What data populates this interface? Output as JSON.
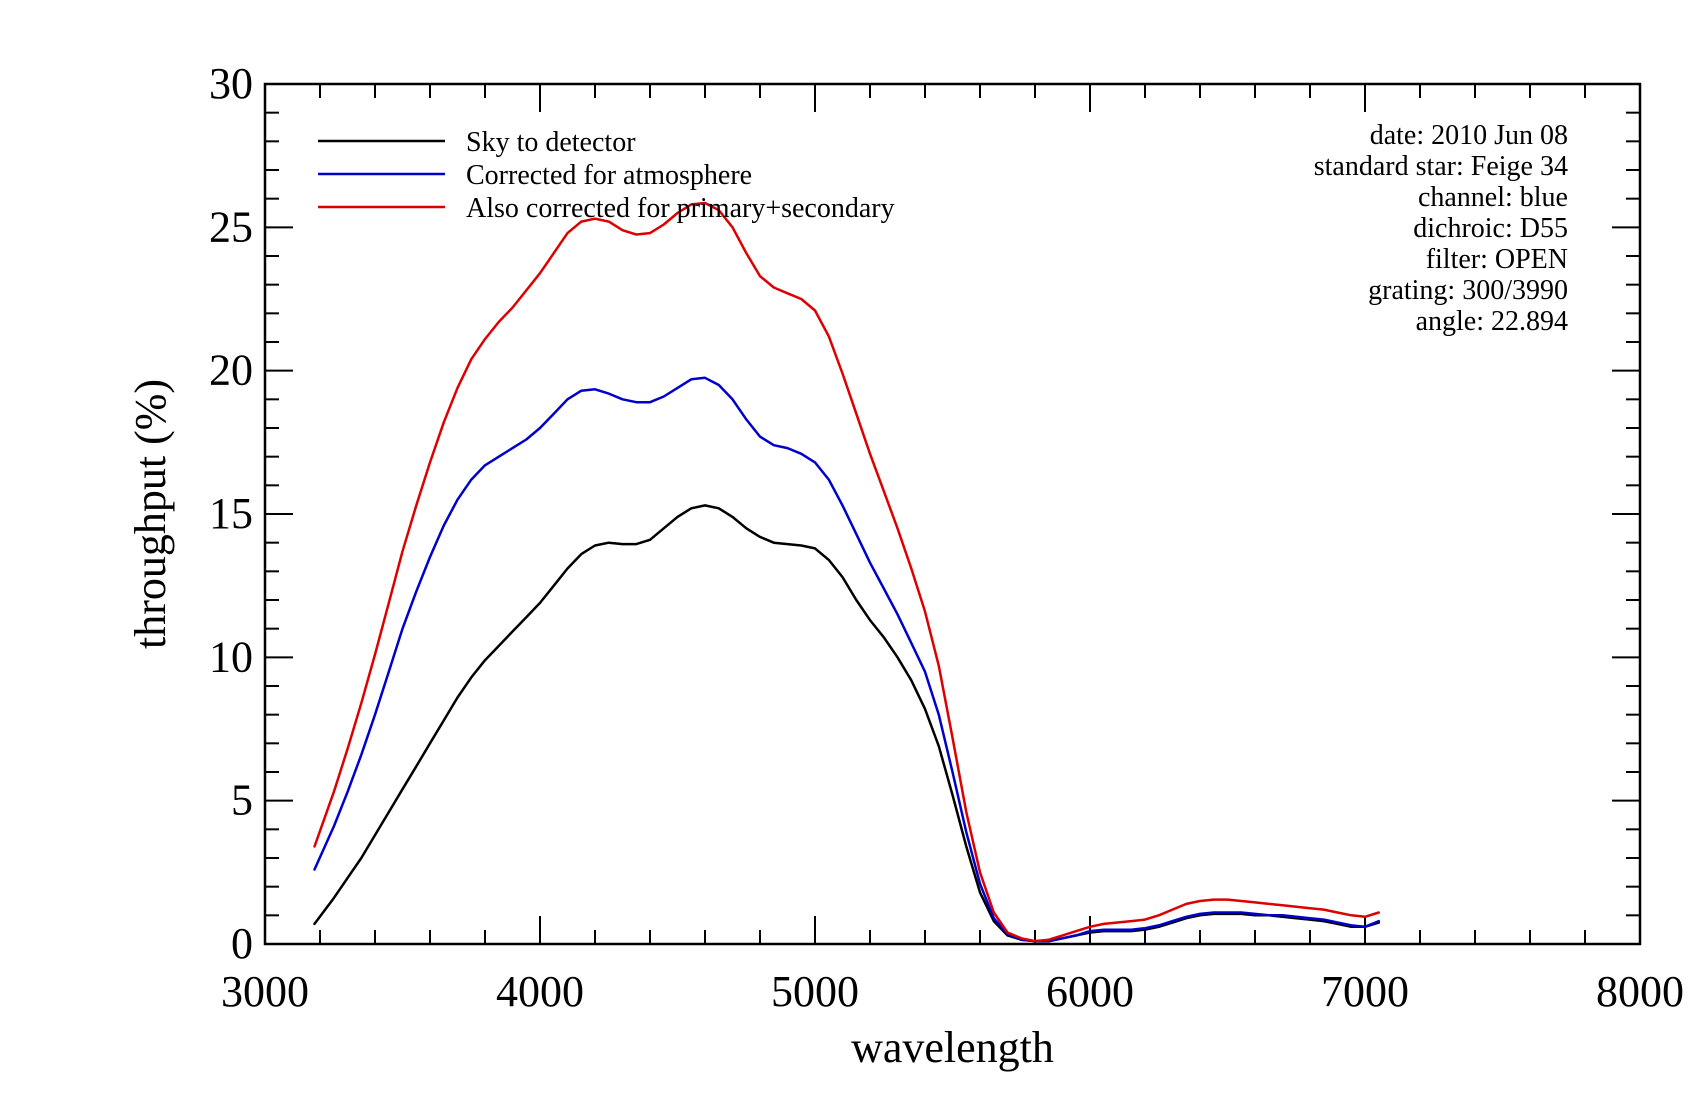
{
  "chart_data": {
    "type": "line",
    "title": "",
    "xlabel": "wavelength",
    "ylabel": "throughput (%)",
    "xlim": [
      3000,
      8000
    ],
    "ylim": [
      0,
      30
    ],
    "xticks": [
      3000,
      4000,
      5000,
      6000,
      7000,
      8000
    ],
    "yticks": [
      0,
      5,
      10,
      15,
      20,
      25,
      30
    ],
    "x_minor_step": 200,
    "y_minor_step": 1,
    "grid": false,
    "legend_position": "top-left",
    "annotations": [
      "date: 2010 Jun 08",
      "standard star: Feige 34",
      "channel: blue",
      "dichroic: D55",
      "filter: OPEN",
      "grating: 300/3990",
      "angle: 22.894"
    ],
    "series": [
      {
        "name": "Sky to detector",
        "color": "#000000",
        "x": [
          3180,
          3250,
          3300,
          3350,
          3400,
          3450,
          3500,
          3550,
          3600,
          3650,
          3700,
          3750,
          3800,
          3850,
          3900,
          3950,
          4000,
          4050,
          4100,
          4150,
          4200,
          4250,
          4300,
          4350,
          4400,
          4450,
          4500,
          4550,
          4600,
          4650,
          4700,
          4750,
          4800,
          4850,
          4900,
          4950,
          5000,
          5050,
          5100,
          5150,
          5200,
          5250,
          5300,
          5350,
          5400,
          5450,
          5500,
          5550,
          5600,
          5650,
          5700,
          5750,
          5800,
          5850,
          5900,
          5950,
          6000,
          6050,
          6100,
          6150,
          6200,
          6250,
          6300,
          6350,
          6400,
          6450,
          6500,
          6550,
          6600,
          6650,
          6700,
          6750,
          6800,
          6850,
          6900,
          6950,
          7000,
          7050
        ],
        "y": [
          0.7,
          1.6,
          2.3,
          3.0,
          3.8,
          4.6,
          5.4,
          6.2,
          7.0,
          7.8,
          8.6,
          9.3,
          9.9,
          10.4,
          10.9,
          11.4,
          11.9,
          12.5,
          13.1,
          13.6,
          13.9,
          14.0,
          13.95,
          13.95,
          14.1,
          14.5,
          14.9,
          15.2,
          15.3,
          15.2,
          14.9,
          14.5,
          14.2,
          14.0,
          13.95,
          13.9,
          13.8,
          13.4,
          12.8,
          12.0,
          11.3,
          10.7,
          10.0,
          9.2,
          8.2,
          6.9,
          5.2,
          3.4,
          1.8,
          0.8,
          0.3,
          0.15,
          0.1,
          0.1,
          0.2,
          0.3,
          0.4,
          0.45,
          0.45,
          0.45,
          0.5,
          0.6,
          0.75,
          0.9,
          1.0,
          1.05,
          1.05,
          1.05,
          1.0,
          1.0,
          0.95,
          0.9,
          0.85,
          0.8,
          0.7,
          0.6,
          0.6,
          0.75
        ]
      },
      {
        "name": "Corrected for atmosphere",
        "color": "#0000cc",
        "x": [
          3180,
          3250,
          3300,
          3350,
          3400,
          3450,
          3500,
          3550,
          3600,
          3650,
          3700,
          3750,
          3800,
          3850,
          3900,
          3950,
          4000,
          4050,
          4100,
          4150,
          4200,
          4250,
          4300,
          4350,
          4400,
          4450,
          4500,
          4550,
          4600,
          4650,
          4700,
          4750,
          4800,
          4850,
          4900,
          4950,
          5000,
          5050,
          5100,
          5150,
          5200,
          5250,
          5300,
          5350,
          5400,
          5450,
          5500,
          5550,
          5600,
          5650,
          5700,
          5750,
          5800,
          5850,
          5900,
          5950,
          6000,
          6050,
          6100,
          6150,
          6200,
          6250,
          6300,
          6350,
          6400,
          6450,
          6500,
          6550,
          6600,
          6650,
          6700,
          6750,
          6800,
          6850,
          6900,
          6950,
          7000,
          7050
        ],
        "y": [
          2.6,
          4.1,
          5.3,
          6.6,
          8.0,
          9.5,
          11.0,
          12.3,
          13.5,
          14.6,
          15.5,
          16.2,
          16.7,
          17.0,
          17.3,
          17.6,
          18.0,
          18.5,
          19.0,
          19.3,
          19.35,
          19.2,
          19.0,
          18.9,
          18.9,
          19.1,
          19.4,
          19.7,
          19.75,
          19.5,
          19.0,
          18.3,
          17.7,
          17.4,
          17.3,
          17.1,
          16.8,
          16.2,
          15.3,
          14.3,
          13.3,
          12.4,
          11.5,
          10.5,
          9.5,
          8.0,
          6.0,
          3.9,
          2.1,
          0.9,
          0.35,
          0.15,
          0.1,
          0.1,
          0.2,
          0.3,
          0.45,
          0.5,
          0.5,
          0.5,
          0.55,
          0.65,
          0.8,
          0.95,
          1.05,
          1.1,
          1.1,
          1.1,
          1.05,
          1.0,
          1.0,
          0.95,
          0.9,
          0.85,
          0.75,
          0.65,
          0.6,
          0.8
        ]
      },
      {
        "name": "Also corrected for primary+secondary",
        "color": "#dd0000",
        "x": [
          3180,
          3250,
          3300,
          3350,
          3400,
          3450,
          3500,
          3550,
          3600,
          3650,
          3700,
          3750,
          3800,
          3850,
          3900,
          3950,
          4000,
          4050,
          4100,
          4150,
          4200,
          4250,
          4300,
          4350,
          4400,
          4450,
          4500,
          4550,
          4600,
          4650,
          4700,
          4750,
          4800,
          4850,
          4900,
          4950,
          5000,
          5050,
          5100,
          5150,
          5200,
          5250,
          5300,
          5350,
          5400,
          5450,
          5500,
          5550,
          5600,
          5650,
          5700,
          5750,
          5800,
          5850,
          5900,
          5950,
          6000,
          6050,
          6100,
          6150,
          6200,
          6250,
          6300,
          6350,
          6400,
          6450,
          6500,
          6550,
          6600,
          6650,
          6700,
          6750,
          6800,
          6850,
          6900,
          6950,
          7000,
          7050
        ],
        "y": [
          3.4,
          5.3,
          6.8,
          8.4,
          10.1,
          11.9,
          13.7,
          15.3,
          16.8,
          18.2,
          19.4,
          20.4,
          21.1,
          21.7,
          22.2,
          22.8,
          23.4,
          24.1,
          24.8,
          25.2,
          25.3,
          25.2,
          24.9,
          24.75,
          24.8,
          25.1,
          25.5,
          25.8,
          25.85,
          25.6,
          25.0,
          24.1,
          23.3,
          22.9,
          22.7,
          22.5,
          22.1,
          21.2,
          19.9,
          18.5,
          17.1,
          15.8,
          14.5,
          13.1,
          11.6,
          9.7,
          7.2,
          4.6,
          2.5,
          1.1,
          0.4,
          0.2,
          0.1,
          0.15,
          0.3,
          0.45,
          0.6,
          0.7,
          0.75,
          0.8,
          0.85,
          1.0,
          1.2,
          1.4,
          1.5,
          1.55,
          1.55,
          1.5,
          1.45,
          1.4,
          1.35,
          1.3,
          1.25,
          1.2,
          1.1,
          1.0,
          0.95,
          1.1
        ]
      }
    ]
  }
}
